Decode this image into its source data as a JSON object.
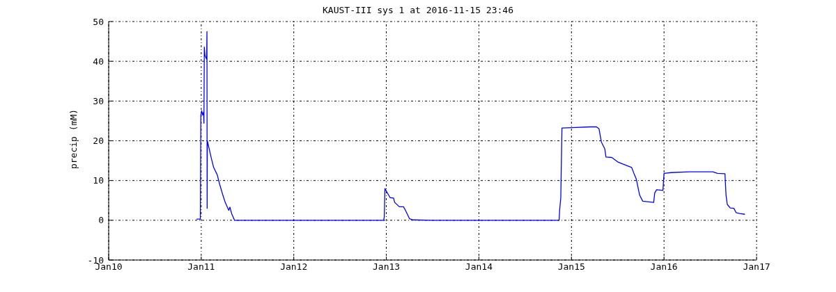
{
  "chart_data": {
    "type": "line",
    "title": "KAUST-III sys 1 at 2016-11-15 23:46",
    "ylabel": "precip (mM)",
    "xlim": [
      "--01-10",
      "--01-17"
    ],
    "xticks": [
      {
        "value": "--01-10",
        "label": "Jan10"
      },
      {
        "value": "--01-11",
        "label": "Jan11"
      },
      {
        "value": "--01-12",
        "label": "Jan12"
      },
      {
        "value": "--01-13",
        "label": "Jan13"
      },
      {
        "value": "--01-14",
        "label": "Jan14"
      },
      {
        "value": "--01-15",
        "label": "Jan15"
      },
      {
        "value": "--01-16",
        "label": "Jan16"
      },
      {
        "value": "--01-17",
        "label": "Jan17"
      }
    ],
    "ylim": [
      -10,
      50
    ],
    "yticks": [
      -10,
      0,
      10,
      20,
      30,
      40,
      50
    ],
    "grid": true,
    "marker": "none",
    "line_style": "solid",
    "series": [
      {
        "color": "#0000ff",
        "x": [
          "--01-10T22:48",
          "--01-10T23:46",
          "--01-10T23:54",
          "--01-11T00:07",
          "--01-11T00:22",
          "--01-11T00:36",
          "--01-11T00:42",
          "--01-11T00:48",
          "--01-11T00:58",
          "--01-11T01:24",
          "--01-11T01:29",
          "--01-11T01:32",
          "--01-11T01:35",
          "--01-11T02:01",
          "--01-11T02:37",
          "--01-11T03:13",
          "--01-11T04:08",
          "--01-11T04:44",
          "--01-11T05:37",
          "--01-11T06:13",
          "--01-11T07:08",
          "--01-11T07:26",
          "--01-11T07:55",
          "--01-11T08:38",
          "--01-12T12:00",
          "--01-12T23:17",
          "--01-12T23:28",
          "--01-12T23:38",
          "--01-13T00:04",
          "--01-13T00:58",
          "--01-13T01:52",
          "--01-13T02:10",
          "--01-13T03:22",
          "--01-13T04:26",
          "--01-13T04:48",
          "--01-13T06:00",
          "--01-13T06:58",
          "--01-13T12:00",
          "--01-14T00:00",
          "--01-14T12:00",
          "--01-14T20:48",
          "--01-14T20:56",
          "--01-14T21:14",
          "--01-14T21:32",
          "--01-15T00:00",
          "--01-15T04:48",
          "--01-15T06:29",
          "--01-15T07:09",
          "--01-15T07:45",
          "--01-15T08:38",
          "--01-15T08:57",
          "--01-15T10:28",
          "--01-15T11:59",
          "--01-15T13:11",
          "--01-15T15:36",
          "--01-15T16:12",
          "--01-15T16:48",
          "--01-15T17:41",
          "--01-15T18:29",
          "--01-15T21:19",
          "--01-15T21:36",
          "--01-15T22:05",
          "--01-15T23:43",
          "--01-16T00:00",
          "--01-16T01:49",
          "--01-16T06:39",
          "--01-16T12:39",
          "--01-16T13:52",
          "--01-16T15:48",
          "--01-16T16:05",
          "--01-16T16:24",
          "--01-16T17:10",
          "--01-16T18:06",
          "--01-16T18:43",
          "--01-16T19:36",
          "--01-16T20:59"
        ],
        "values": [
          0.3,
          0.3,
          26.4,
          27.6,
          26.5,
          27.2,
          24.4,
          43.6,
          41.5,
          40.5,
          47.5,
          3,
          20,
          18.2,
          15.6,
          13.3,
          11.5,
          9.2,
          6.3,
          4.5,
          2.5,
          3.3,
          1.6,
          0,
          0,
          0,
          0.8,
          8.0,
          7.2,
          5.7,
          5.6,
          4.5,
          3.4,
          3.4,
          2.8,
          0.4,
          0.1,
          0,
          0,
          0,
          0,
          2.5,
          5.7,
          23.2,
          23.3,
          23.5,
          23.5,
          23.0,
          19.7,
          18,
          15.9,
          15.8,
          14.7,
          14.2,
          13.3,
          11.8,
          10.4,
          6.3,
          4.8,
          4.5,
          6.9,
          7.7,
          7.5,
          11.8,
          12.0,
          12.2,
          12.2,
          11.8,
          11.7,
          6.3,
          4.0,
          3.1,
          3.0,
          1.9,
          1.7,
          1.5
        ]
      }
    ]
  }
}
